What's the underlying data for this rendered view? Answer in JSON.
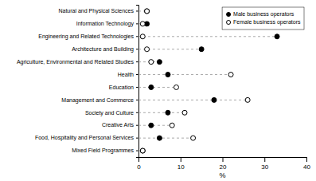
{
  "chart_data": {
    "type": "dot",
    "orientation": "horizontal",
    "categories": [
      "Natural and Physical Sciences",
      "Information Technology",
      "Engineering and Related Technologies",
      "Architecture and Building",
      "Agriculture, Environmental and Related Studies",
      "Health",
      "Education",
      "Management and Commerce",
      "Society and Culture",
      "Creative Arts",
      "Food, Hospitality and Personal Services",
      "Mixed Field Programmes"
    ],
    "series": [
      {
        "name": "Male business operators",
        "color": "black",
        "marker": "filled-circle",
        "values": [
          2,
          2,
          33,
          15,
          5,
          7,
          3,
          18,
          7,
          3,
          5,
          1
        ]
      },
      {
        "name": "Female business operators",
        "color": "black",
        "marker": "open-circle",
        "values": [
          2,
          1,
          1,
          2,
          3,
          22,
          9,
          26,
          11,
          8,
          13,
          1
        ]
      }
    ],
    "xlabel": "%",
    "xlim": [
      0,
      40
    ],
    "xticks": [
      0,
      10,
      20,
      30,
      40
    ],
    "line_style": "dashed",
    "legend": "upper right",
    "grid": false
  }
}
